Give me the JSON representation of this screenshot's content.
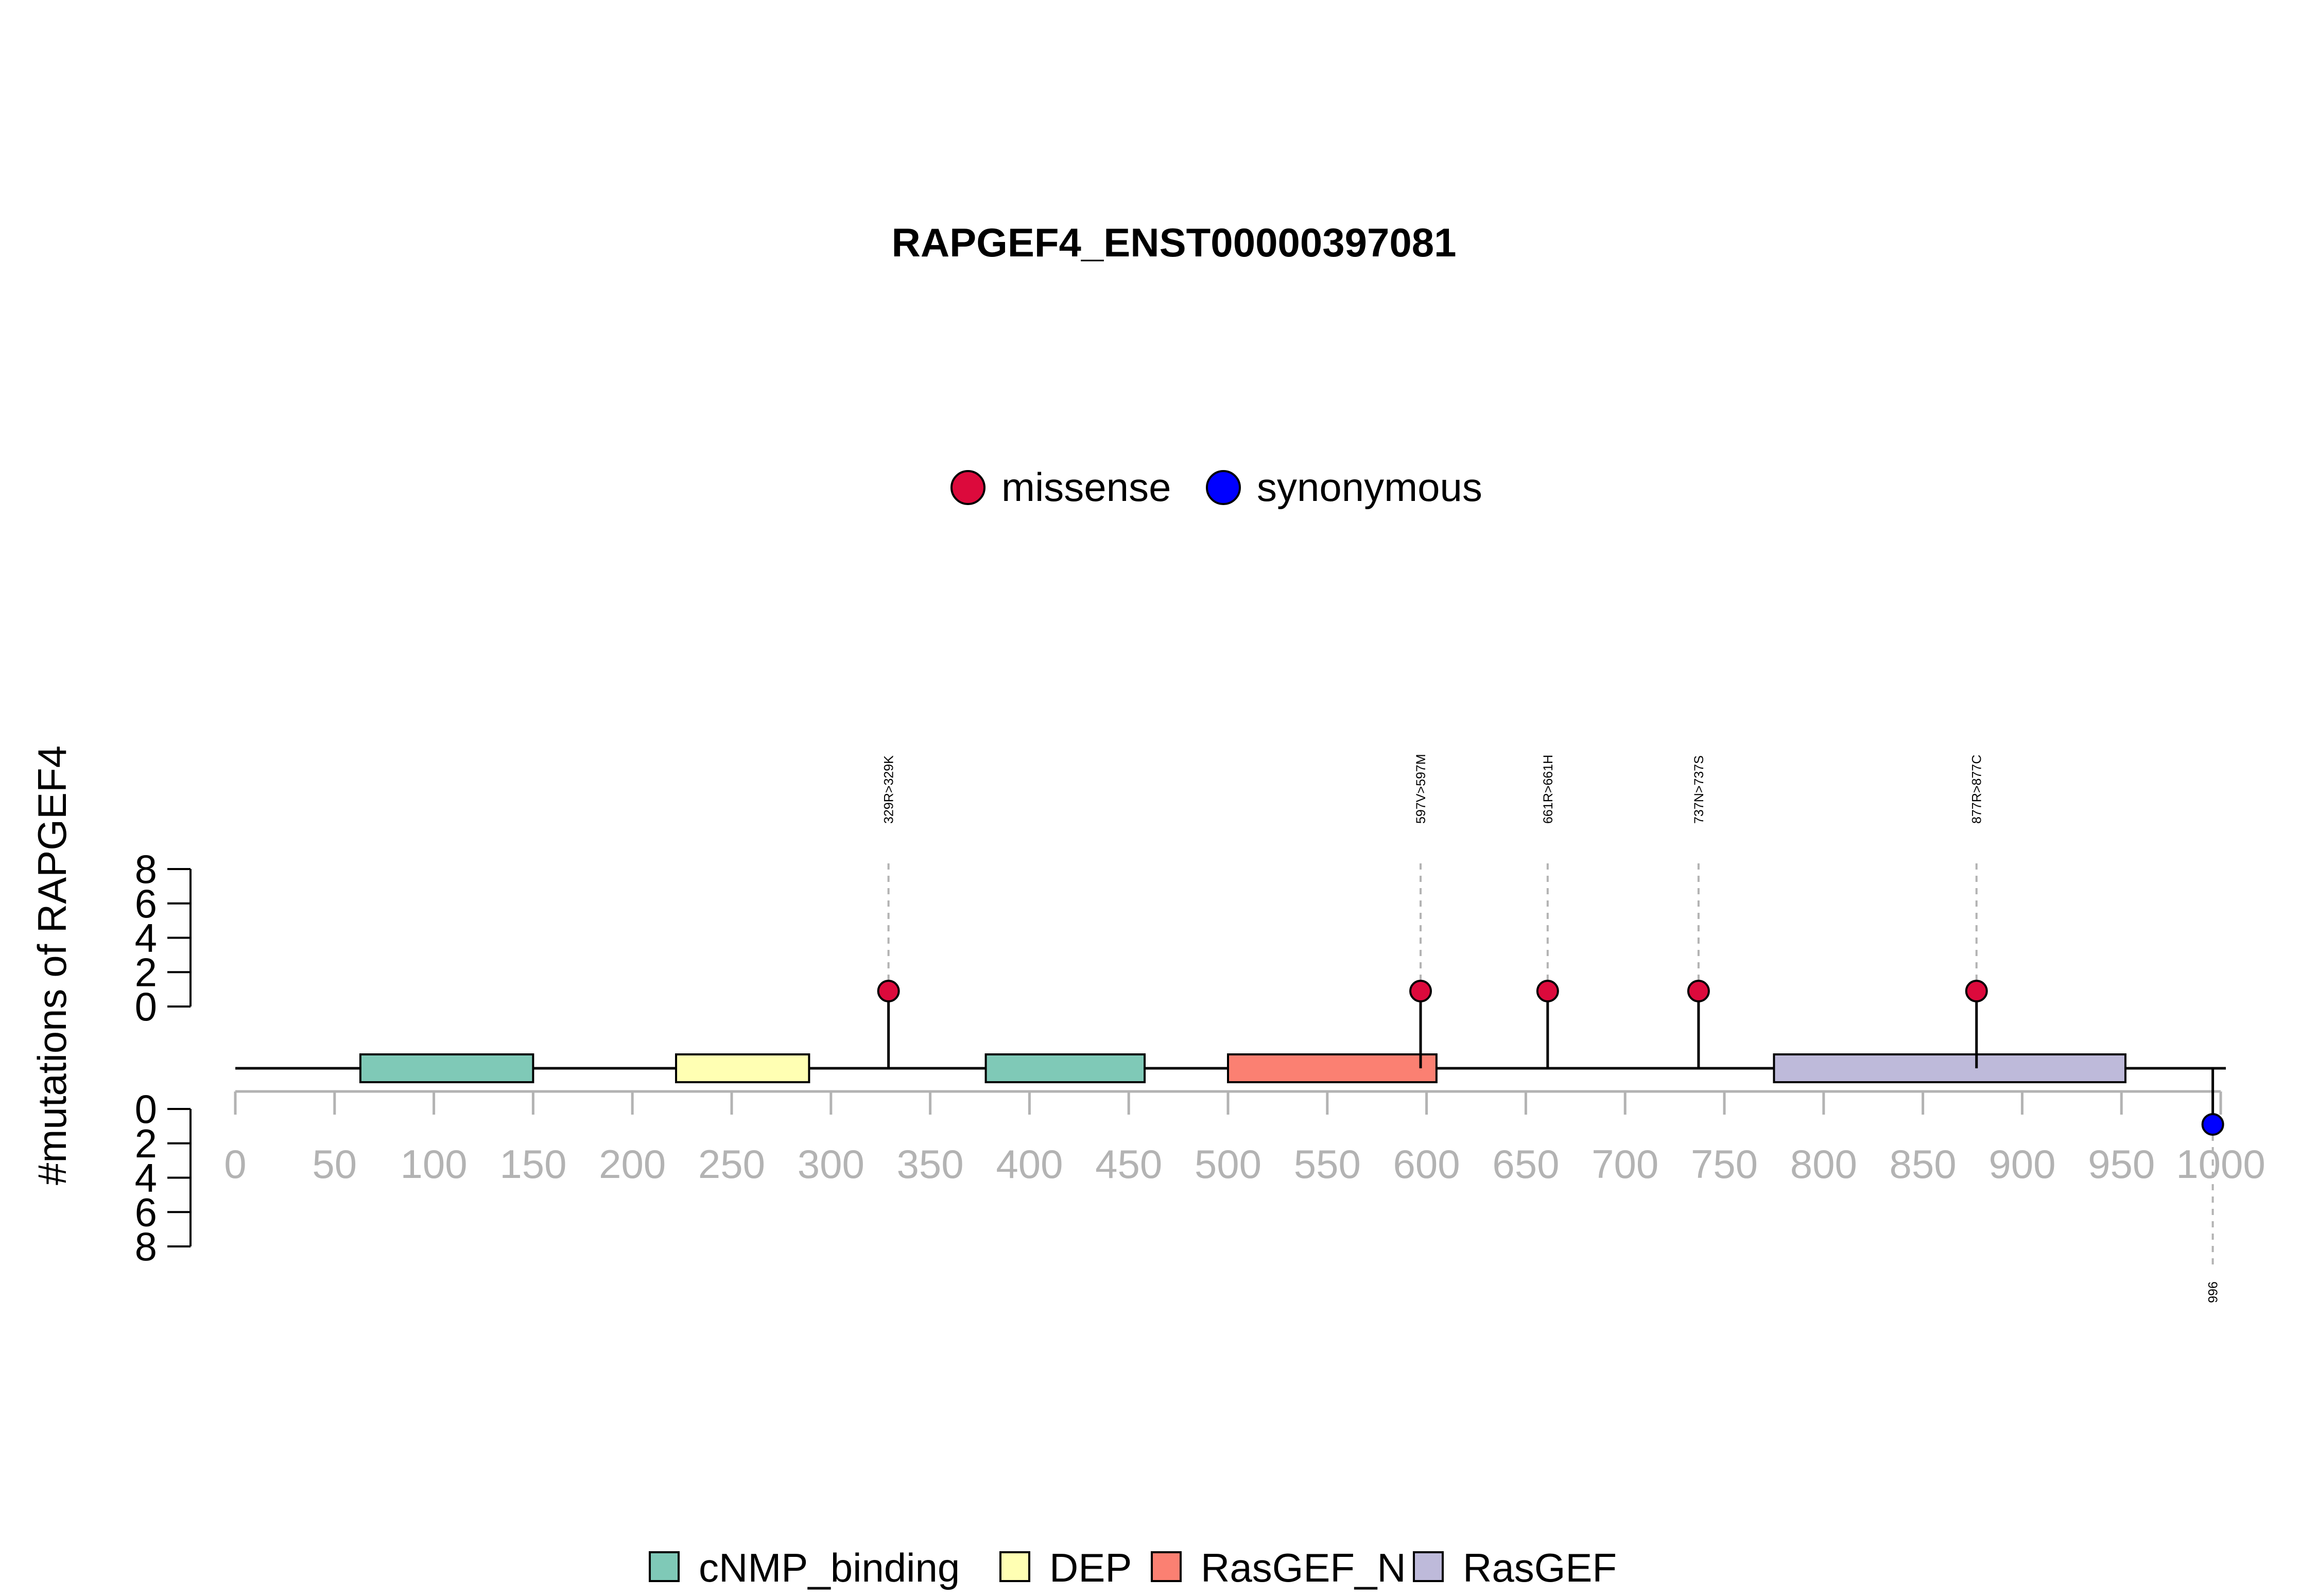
{
  "chart_data": {
    "type": "lollipop",
    "title": "RAPGEF4_ENST00000397081",
    "ylabel": "#mutations of RAPGEF4",
    "xlim": [
      0,
      1000
    ],
    "x_ticks": [
      0,
      50,
      100,
      150,
      200,
      250,
      300,
      350,
      400,
      450,
      500,
      550,
      600,
      650,
      700,
      750,
      800,
      850,
      900,
      950,
      1000
    ],
    "y_ticks": [
      0,
      2,
      4,
      6,
      8
    ],
    "ylim": [
      0,
      8
    ],
    "protein_length": 1000,
    "mutation_types": [
      {
        "name": "missense",
        "color": "#dc0a3c"
      },
      {
        "name": "synonymous",
        "color": "#0000ff"
      }
    ],
    "domains": [
      {
        "name": "cNMP_binding",
        "start": 63,
        "end": 150,
        "color": "#7fc9b7"
      },
      {
        "name": "DEP",
        "start": 222,
        "end": 289,
        "color": "#ffffb3"
      },
      {
        "name": "cNMP_binding",
        "start": 378,
        "end": 458,
        "color": "#7fc9b7"
      },
      {
        "name": "RasGEF_N",
        "start": 500,
        "end": 605,
        "color": "#fb8072"
      },
      {
        "name": "RasGEF",
        "start": 775,
        "end": 952,
        "color": "#bebada"
      }
    ],
    "domain_legend": [
      {
        "name": "cNMP_binding",
        "color": "#7fc9b7"
      },
      {
        "name": "DEP",
        "color": "#ffffb3"
      },
      {
        "name": "RasGEF_N",
        "color": "#fb8072"
      },
      {
        "name": "RasGEF",
        "color": "#bebada"
      }
    ],
    "mutations": [
      {
        "position": 329,
        "label": "329R>329K",
        "count": 1,
        "type": "missense",
        "strand": "top"
      },
      {
        "position": 597,
        "label": "597V>597M",
        "count": 1,
        "type": "missense",
        "strand": "top"
      },
      {
        "position": 661,
        "label": "661R>661H",
        "count": 1,
        "type": "missense",
        "strand": "top"
      },
      {
        "position": 737,
        "label": "737N>737S",
        "count": 1,
        "type": "missense",
        "strand": "top"
      },
      {
        "position": 877,
        "label": "877R>877C",
        "count": 1,
        "type": "missense",
        "strand": "top"
      },
      {
        "position": 996,
        "label": "996",
        "count": 1,
        "type": "synonymous",
        "strand": "bottom"
      }
    ]
  }
}
